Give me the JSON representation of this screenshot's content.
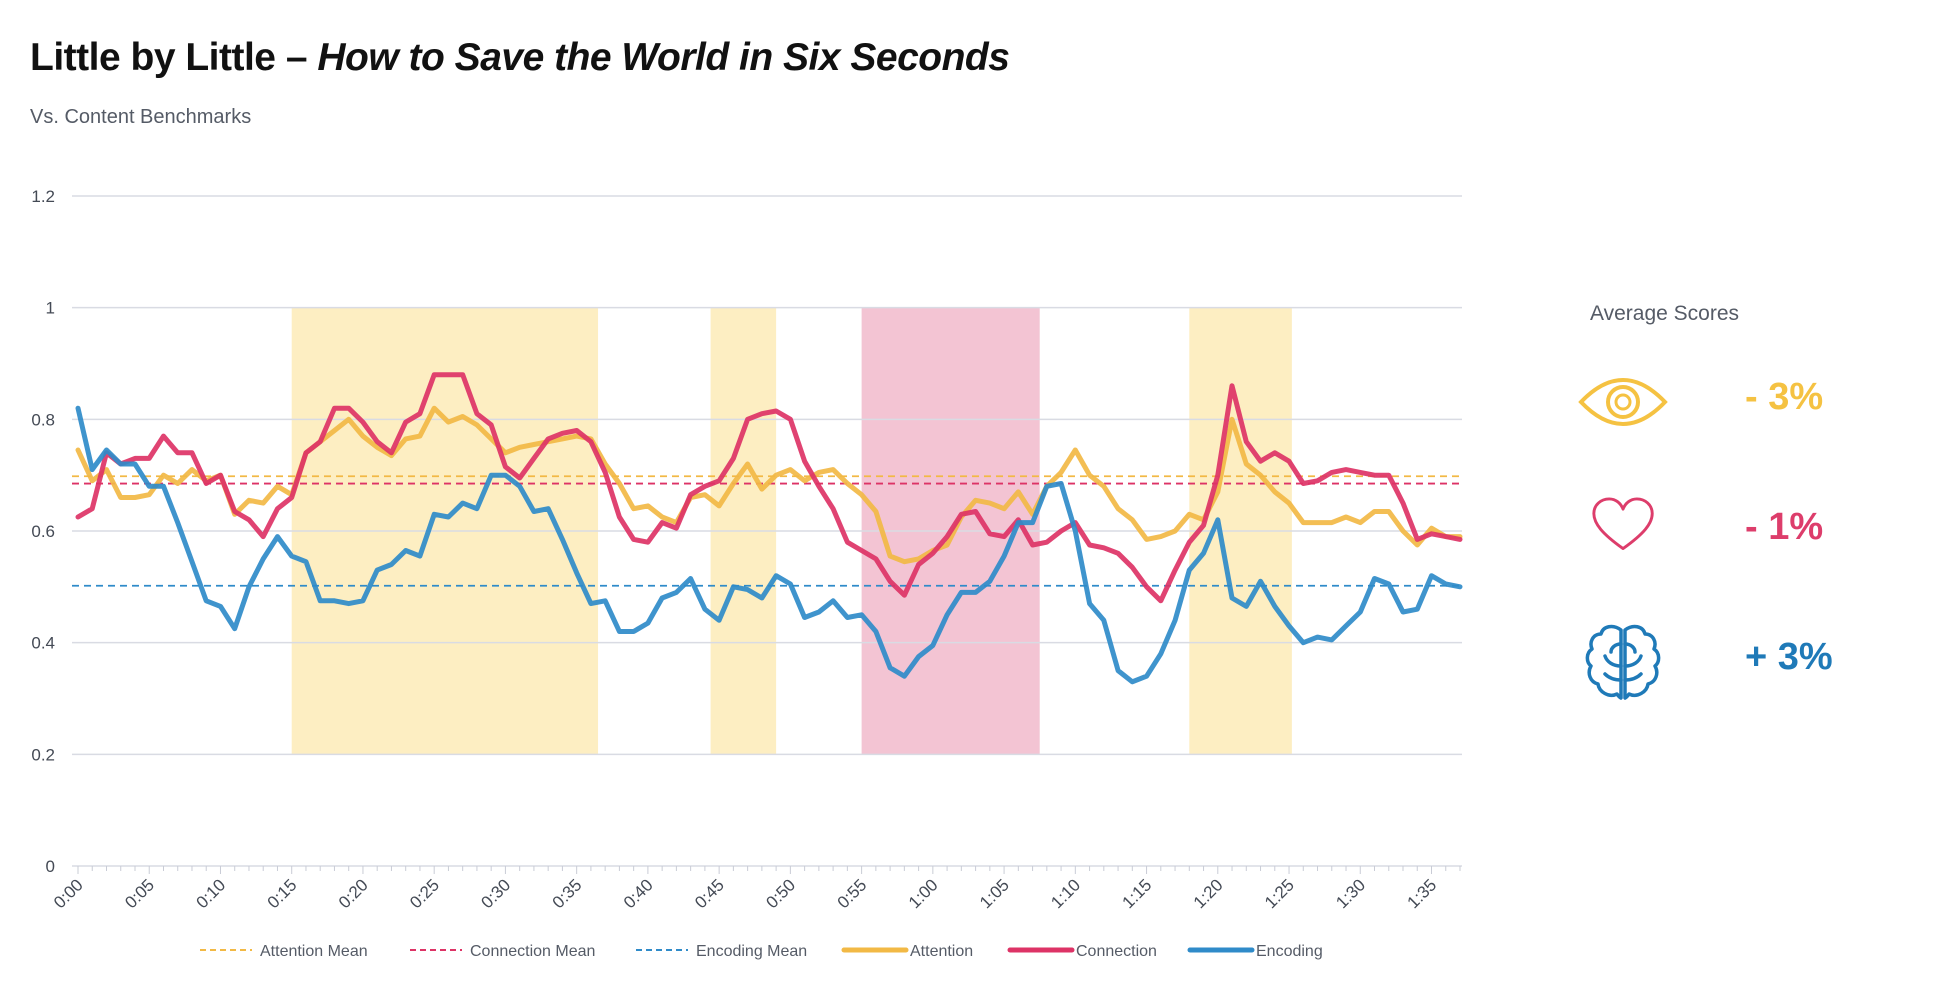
{
  "title": {
    "main": "Little by Little – ",
    "italic": "How to Save the World in Six Seconds"
  },
  "subtitle": "Vs. Content Benchmarks",
  "scores": {
    "title": "Average Scores",
    "attention": {
      "icon": "eye-icon",
      "value": "-  3%",
      "color": "#f5c242"
    },
    "connection": {
      "icon": "heart-icon",
      "value": "-  1%",
      "color": "#dd3d6b"
    },
    "encoding": {
      "icon": "brain-icon",
      "value": "+ 3%",
      "color": "#1f7ab8"
    }
  },
  "colors": {
    "attention": "#f2b945",
    "connection": "#dd3366",
    "encoding": "#2f8bc9",
    "highlight_yellow": "#fdeec2",
    "highlight_pink": "#f3c4d3",
    "grid": "#d9dbe3"
  },
  "chart_data": {
    "type": "line",
    "xlabel": "",
    "ylabel": "",
    "ylim": [
      0,
      1.2
    ],
    "yticks": [
      "0",
      "0.2",
      "0.4",
      "0.6",
      "0.8",
      "1",
      "1.2"
    ],
    "xlim": [
      0,
      97
    ],
    "xticks": [
      "0:00",
      "0:05",
      "0:10",
      "0:15",
      "0:20",
      "0:25",
      "0:30",
      "0:35",
      "0:40",
      "0:45",
      "0:50",
      "0:55",
      "1:00",
      "1:05",
      "1:10",
      "1:15",
      "1:20",
      "1:25",
      "1:30",
      "1:35"
    ],
    "highlight_regions": [
      {
        "start": 15,
        "end": 36.5,
        "color": "yellow",
        "ymin": 0.2,
        "ymax": 1.0
      },
      {
        "start": 44.4,
        "end": 49,
        "color": "yellow",
        "ymin": 0.2,
        "ymax": 1.0
      },
      {
        "start": 55,
        "end": 67.5,
        "color": "pink",
        "ymin": 0.2,
        "ymax": 1.0
      },
      {
        "start": 78,
        "end": 85.2,
        "color": "yellow",
        "ymin": 0.2,
        "ymax": 1.0
      }
    ],
    "mean_lines": [
      {
        "name": "Attention Mean",
        "value": 0.698,
        "color": "#f2b945"
      },
      {
        "name": "Connection Mean",
        "value": 0.685,
        "color": "#dd3366"
      },
      {
        "name": "Encoding Mean",
        "value": 0.502,
        "color": "#2f8bc9"
      }
    ],
    "series": [
      {
        "name": "Attention",
        "color": "#f2b945",
        "x": [
          0,
          1,
          2,
          3,
          4,
          5,
          6,
          7,
          8,
          9,
          10,
          11,
          12,
          13,
          14,
          15,
          16,
          17,
          18,
          19,
          20,
          21,
          22,
          23,
          24,
          25,
          26,
          27,
          28,
          29,
          30,
          31,
          32,
          33,
          34,
          35,
          36,
          37,
          38,
          39,
          40,
          41,
          42,
          43,
          44,
          45,
          46,
          47,
          48,
          49,
          50,
          51,
          52,
          53,
          54,
          55,
          56,
          57,
          58,
          59,
          60,
          61,
          62,
          63,
          64,
          65,
          66,
          67,
          68,
          69,
          70,
          71,
          72,
          73,
          74,
          75,
          76,
          77,
          78,
          79,
          80,
          81,
          82,
          83,
          84,
          85,
          86,
          87,
          88,
          89,
          90,
          91,
          92,
          93,
          94,
          95,
          96,
          97
        ],
        "values": [
          0.745,
          0.69,
          0.71,
          0.66,
          0.66,
          0.665,
          0.7,
          0.685,
          0.71,
          0.69,
          0.7,
          0.63,
          0.655,
          0.65,
          0.68,
          0.665,
          0.74,
          0.76,
          0.78,
          0.8,
          0.77,
          0.75,
          0.735,
          0.765,
          0.77,
          0.82,
          0.795,
          0.805,
          0.79,
          0.765,
          0.74,
          0.75,
          0.755,
          0.76,
          0.765,
          0.77,
          0.765,
          0.72,
          0.685,
          0.64,
          0.645,
          0.625,
          0.615,
          0.66,
          0.665,
          0.645,
          0.685,
          0.72,
          0.675,
          0.7,
          0.71,
          0.69,
          0.705,
          0.71,
          0.685,
          0.665,
          0.635,
          0.555,
          0.545,
          0.55,
          0.565,
          0.575,
          0.625,
          0.655,
          0.65,
          0.64,
          0.67,
          0.63,
          0.68,
          0.705,
          0.745,
          0.7,
          0.68,
          0.64,
          0.62,
          0.585,
          0.59,
          0.6,
          0.63,
          0.62,
          0.67,
          0.8,
          0.72,
          0.7,
          0.67,
          0.65,
          0.615,
          0.615,
          0.615,
          0.625,
          0.615,
          0.635,
          0.635,
          0.6,
          0.575,
          0.605,
          0.59,
          0.59
        ]
      },
      {
        "name": "Connection",
        "color": "#dd3366",
        "x": [
          0,
          1,
          2,
          3,
          4,
          5,
          6,
          7,
          8,
          9,
          10,
          11,
          12,
          13,
          14,
          15,
          16,
          17,
          18,
          19,
          20,
          21,
          22,
          23,
          24,
          25,
          26,
          27,
          28,
          29,
          30,
          31,
          32,
          33,
          34,
          35,
          36,
          37,
          38,
          39,
          40,
          41,
          42,
          43,
          44,
          45,
          46,
          47,
          48,
          49,
          50,
          51,
          52,
          53,
          54,
          55,
          56,
          57,
          58,
          59,
          60,
          61,
          62,
          63,
          64,
          65,
          66,
          67,
          68,
          69,
          70,
          71,
          72,
          73,
          74,
          75,
          76,
          77,
          78,
          79,
          80,
          81,
          82,
          83,
          84,
          85,
          86,
          87,
          88,
          89,
          90,
          91,
          92,
          93,
          94,
          95,
          96,
          97
        ],
        "values": [
          0.625,
          0.64,
          0.74,
          0.72,
          0.73,
          0.73,
          0.77,
          0.74,
          0.74,
          0.685,
          0.7,
          0.635,
          0.62,
          0.59,
          0.64,
          0.66,
          0.74,
          0.76,
          0.82,
          0.82,
          0.795,
          0.76,
          0.74,
          0.795,
          0.81,
          0.88,
          0.88,
          0.88,
          0.81,
          0.79,
          0.715,
          0.695,
          0.73,
          0.765,
          0.775,
          0.78,
          0.76,
          0.705,
          0.625,
          0.585,
          0.58,
          0.615,
          0.605,
          0.665,
          0.68,
          0.69,
          0.73,
          0.8,
          0.81,
          0.815,
          0.8,
          0.725,
          0.68,
          0.64,
          0.58,
          0.565,
          0.55,
          0.51,
          0.485,
          0.54,
          0.56,
          0.59,
          0.63,
          0.635,
          0.595,
          0.59,
          0.62,
          0.575,
          0.58,
          0.6,
          0.615,
          0.575,
          0.57,
          0.56,
          0.535,
          0.5,
          0.475,
          0.53,
          0.58,
          0.61,
          0.7,
          0.86,
          0.76,
          0.725,
          0.74,
          0.725,
          0.685,
          0.69,
          0.705,
          0.71,
          0.705,
          0.7,
          0.7,
          0.65,
          0.585,
          0.595,
          0.59,
          0.585
        ]
      },
      {
        "name": "Encoding",
        "color": "#2f8bc9",
        "x": [
          0,
          1,
          2,
          3,
          4,
          5,
          6,
          7,
          8,
          9,
          10,
          11,
          12,
          13,
          14,
          15,
          16,
          17,
          18,
          19,
          20,
          21,
          22,
          23,
          24,
          25,
          26,
          27,
          28,
          29,
          30,
          31,
          32,
          33,
          34,
          35,
          36,
          37,
          38,
          39,
          40,
          41,
          42,
          43,
          44,
          45,
          46,
          47,
          48,
          49,
          50,
          51,
          52,
          53,
          54,
          55,
          56,
          57,
          58,
          59,
          60,
          61,
          62,
          63,
          64,
          65,
          66,
          67,
          68,
          69,
          70,
          71,
          72,
          73,
          74,
          75,
          76,
          77,
          78,
          79,
          80,
          81,
          82,
          83,
          84,
          85,
          86,
          87,
          88,
          89,
          90,
          91,
          92,
          93,
          94,
          95,
          96,
          97
        ],
        "values": [
          0.82,
          0.71,
          0.745,
          0.72,
          0.72,
          0.68,
          0.68,
          0.615,
          0.545,
          0.475,
          0.465,
          0.425,
          0.5,
          0.55,
          0.59,
          0.555,
          0.545,
          0.475,
          0.475,
          0.47,
          0.475,
          0.53,
          0.54,
          0.565,
          0.555,
          0.63,
          0.625,
          0.65,
          0.64,
          0.7,
          0.7,
          0.68,
          0.635,
          0.64,
          0.585,
          0.525,
          0.47,
          0.475,
          0.42,
          0.42,
          0.435,
          0.48,
          0.49,
          0.515,
          0.46,
          0.44,
          0.5,
          0.495,
          0.48,
          0.52,
          0.505,
          0.445,
          0.455,
          0.475,
          0.445,
          0.45,
          0.42,
          0.355,
          0.34,
          0.375,
          0.395,
          0.45,
          0.49,
          0.49,
          0.51,
          0.555,
          0.615,
          0.615,
          0.68,
          0.685,
          0.6,
          0.47,
          0.44,
          0.35,
          0.33,
          0.34,
          0.38,
          0.44,
          0.53,
          0.56,
          0.62,
          0.48,
          0.465,
          0.51,
          0.465,
          0.43,
          0.4,
          0.41,
          0.405,
          0.43,
          0.455,
          0.515,
          0.505,
          0.455,
          0.46,
          0.52,
          0.505,
          0.5
        ]
      }
    ],
    "legend": {
      "position": "bottom",
      "items": [
        {
          "label": "Attention Mean",
          "style": "dashed",
          "color": "#f2b945"
        },
        {
          "label": "Connection Mean",
          "style": "dashed",
          "color": "#dd3366"
        },
        {
          "label": "Encoding Mean",
          "style": "dashed",
          "color": "#2f8bc9"
        },
        {
          "label": "Attention",
          "style": "solid",
          "color": "#f2b945"
        },
        {
          "label": "Connection",
          "style": "solid",
          "color": "#dd3366"
        },
        {
          "label": "Encoding",
          "style": "solid",
          "color": "#2f8bc9"
        }
      ]
    }
  }
}
